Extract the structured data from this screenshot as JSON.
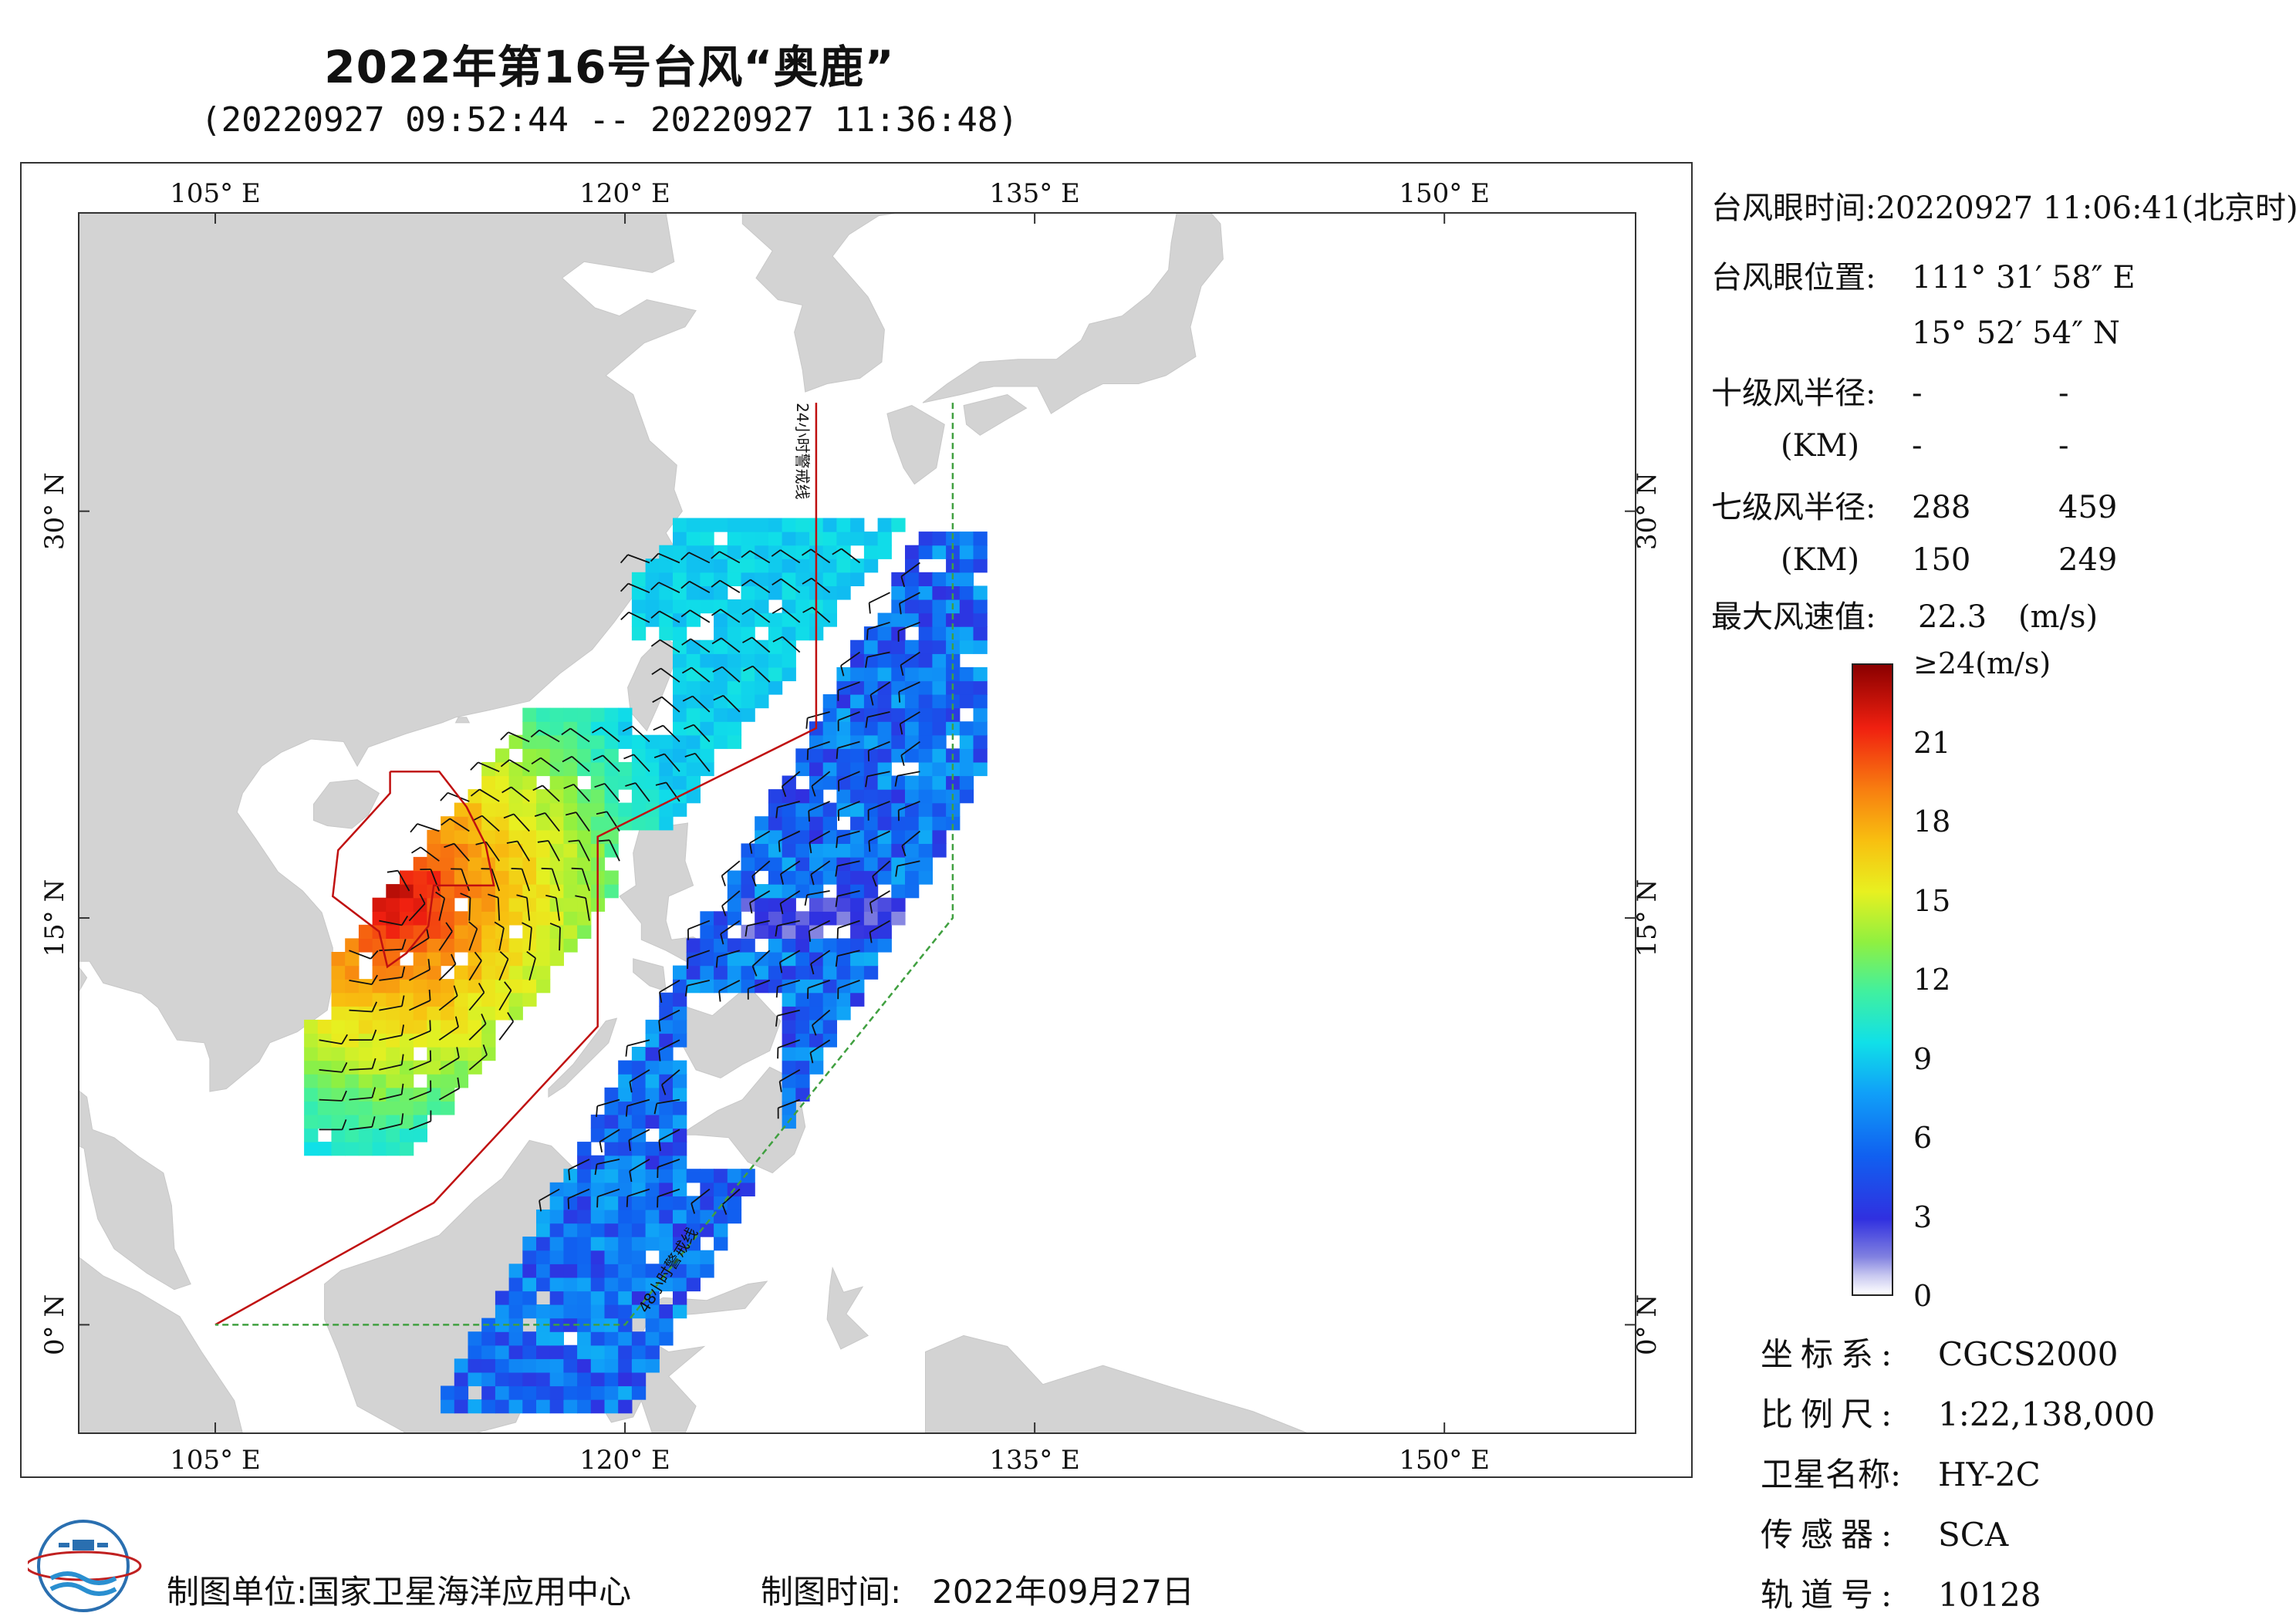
{
  "title": "2022年第16号台风“奥鹿”",
  "subtitle": "(20220927 09:52:44 -- 20220927 11:36:48)",
  "map": {
    "lon_range": [
      100,
      157
    ],
    "lat_range": [
      -4,
      41
    ],
    "lon_ticks": [
      {
        "value": 105,
        "label": "105° E"
      },
      {
        "value": 120,
        "label": "120° E"
      },
      {
        "value": 135,
        "label": "135° E"
      },
      {
        "value": 150,
        "label": "150° E"
      }
    ],
    "lat_ticks": [
      {
        "value": 30,
        "label": "30° N"
      },
      {
        "value": 15,
        "label": "15° N"
      },
      {
        "value": 0,
        "label": "0° N"
      }
    ],
    "warning_24h_label": "24小时警戒线",
    "warning_48h_label": "48小时警戒线",
    "typhoon_center": {
      "lon": 111.53,
      "lat": 15.88
    },
    "colors": {
      "land": "#d3d3d3",
      "ocean": "#ffffff",
      "line24": "#c01010",
      "line48": "#40a040"
    }
  },
  "info": {
    "eye_time_label": "台风眼时间:",
    "eye_time_value": "20220927 11:06:41(北京时)",
    "eye_pos_label": "台风眼位置:",
    "eye_lon": "111° 31′ 58″ E",
    "eye_lat": "15° 52′ 54″ N",
    "r10_label": "十级风半径:",
    "r10_unit": "(KM)",
    "r10_values": [
      "-",
      "-",
      "-",
      "-"
    ],
    "r7_label": "七级风半径:",
    "r7_unit": "(KM)",
    "r7_values": [
      "288",
      "459",
      "150",
      "249"
    ],
    "maxwind_label": "最大风速值:",
    "maxwind_value": "22.3",
    "maxwind_unit": "(m/s)"
  },
  "colorbar": {
    "range": [
      0,
      24
    ],
    "labels": [
      {
        "value": 24,
        "text": "≥24(m/s)"
      },
      {
        "value": 21,
        "text": "21"
      },
      {
        "value": 18,
        "text": "18"
      },
      {
        "value": 15,
        "text": "15"
      },
      {
        "value": 12,
        "text": "12"
      },
      {
        "value": 9,
        "text": "9"
      },
      {
        "value": 6,
        "text": "6"
      },
      {
        "value": 3,
        "text": "3"
      },
      {
        "value": 0,
        "text": "0"
      }
    ]
  },
  "meta": {
    "coord_label": "坐标系:",
    "coord_value": "CGCS2000",
    "scale_label": "比例尺:",
    "scale_value": "1:22,138,000",
    "satellite_label": "卫星名称:",
    "satellite_value": "HY-2C",
    "sensor_label": "传感器:",
    "sensor_value": "SCA",
    "orbit_label": "轨道号:",
    "orbit_value": "10128"
  },
  "footer": {
    "unit_label": "制图单位:",
    "unit_value": "国家卫星海洋应用中心",
    "time_label": "制图时间:",
    "time_value": "2022年09月27日"
  },
  "logo_icon": "nsoas-logo-icon"
}
